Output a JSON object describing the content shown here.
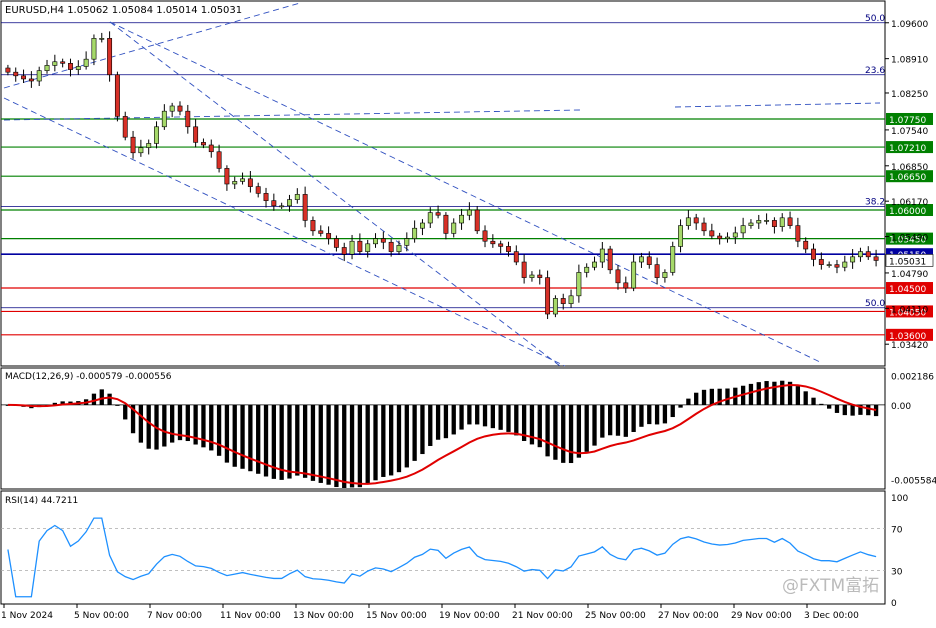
{
  "header": {
    "symbol_info": "EURUSD,H4  1.05062 1.05084 1.05014 1.05031",
    "macd_info": "MACD(12,26,9) -0.000579 -0.000556",
    "rsi_info": "RSI(14) 44.7211"
  },
  "watermark": "@FXTM富拓",
  "colors": {
    "bull": "#a6d96a",
    "bear": "#d73027",
    "green_level": "#008000",
    "red_level": "#e00000",
    "blue_level": "#0000a0",
    "trend_dash": "#3050c0",
    "macd_hist": "#000000",
    "macd_signal": "#e00000",
    "rsi_line": "#1e90ff"
  },
  "chart_data": [
    {
      "type": "candlestick",
      "title": "EURUSD,H4",
      "ylim": [
        1.0302,
        1.0998
      ],
      "y_ticks": [
        "1.09600",
        "1.08910",
        "1.08250",
        "1.07540",
        "1.06850",
        "1.06170",
        "1.05490",
        "1.04790",
        "1.04110",
        "1.03420"
      ],
      "x_ticks": [
        "1 Nov 2024",
        "5 Nov 00:00",
        "7 Nov 00:00",
        "11 Nov 00:00",
        "13 Nov 00:00",
        "15 Nov 00:00",
        "19 Nov 00:00",
        "21 Nov 00:00",
        "25 Nov 00:00",
        "27 Nov 00:00",
        "29 Nov 00:00",
        "3 Dec 00:00"
      ],
      "horizontal_levels": [
        {
          "price": 1.0775,
          "label": "1.07750",
          "color": "green"
        },
        {
          "price": 1.0721,
          "label": "1.07210",
          "color": "green"
        },
        {
          "price": 1.0665,
          "label": "1.06650",
          "color": "green"
        },
        {
          "price": 1.06,
          "label": "1.06000",
          "color": "green"
        },
        {
          "price": 1.0545,
          "label": "1.05450",
          "color": "green"
        },
        {
          "price": 1.0515,
          "label": "1.05150",
          "color": "blue"
        },
        {
          "price": 1.045,
          "label": "1.04500",
          "color": "red"
        },
        {
          "price": 1.0405,
          "label": "1.04050",
          "color": "red"
        },
        {
          "price": 1.036,
          "label": "1.03600",
          "color": "red"
        }
      ],
      "current_price": "1.05031",
      "fibonacci": [
        {
          "label": "50.0",
          "price": 1.096
        },
        {
          "label": "23.6",
          "price": 1.086
        },
        {
          "label": "38.2",
          "price": 1.0607
        },
        {
          "label": "50.0",
          "price": 1.0412
        }
      ],
      "candles_close": [
        1.0865,
        1.0858,
        1.0852,
        1.0848,
        1.0868,
        1.0878,
        1.0885,
        1.0882,
        1.087,
        1.0876,
        1.089,
        1.093,
        1.093,
        1.086,
        1.078,
        1.074,
        1.071,
        1.072,
        1.0728,
        1.076,
        1.079,
        1.08,
        1.079,
        1.076,
        1.073,
        1.0725,
        1.0712,
        1.068,
        1.065,
        1.0655,
        1.066,
        1.0645,
        1.0632,
        1.0618,
        1.0608,
        1.0608,
        1.062,
        1.063,
        1.058,
        1.056,
        1.0555,
        1.0545,
        1.0528,
        1.0515,
        1.054,
        1.052,
        1.0535,
        1.0545,
        1.0538,
        1.052,
        1.0532,
        1.0545,
        1.0565,
        1.0575,
        1.0595,
        1.059,
        1.0555,
        1.0575,
        1.059,
        1.06,
        1.056,
        1.054,
        1.0535,
        1.053,
        1.052,
        1.05,
        1.047,
        1.0475,
        1.047,
        1.04,
        1.043,
        1.042,
        1.0435,
        1.048,
        1.049,
        1.05,
        1.0525,
        1.0485,
        1.046,
        1.045,
        1.05,
        1.051,
        1.0495,
        1.047,
        1.048,
        1.053,
        1.057,
        1.0585,
        1.0575,
        1.056,
        1.055,
        1.0545,
        1.0548,
        1.0556,
        1.057,
        1.0575,
        1.058,
        1.058,
        1.0568,
        1.0585,
        1.057,
        1.054,
        1.0525,
        1.0505,
        1.0495,
        1.0495,
        1.049,
        1.05,
        1.051,
        1.052,
        1.051,
        1.0503
      ],
      "macd_ylim": [
        -0.0062,
        0.0026
      ],
      "macd_ticks": [
        "0.002186",
        "0.00",
        "-0.005584"
      ],
      "rsi_ylim": [
        0,
        100
      ],
      "rsi_ticks": [
        "100",
        "70",
        "30",
        "0"
      ]
    }
  ]
}
